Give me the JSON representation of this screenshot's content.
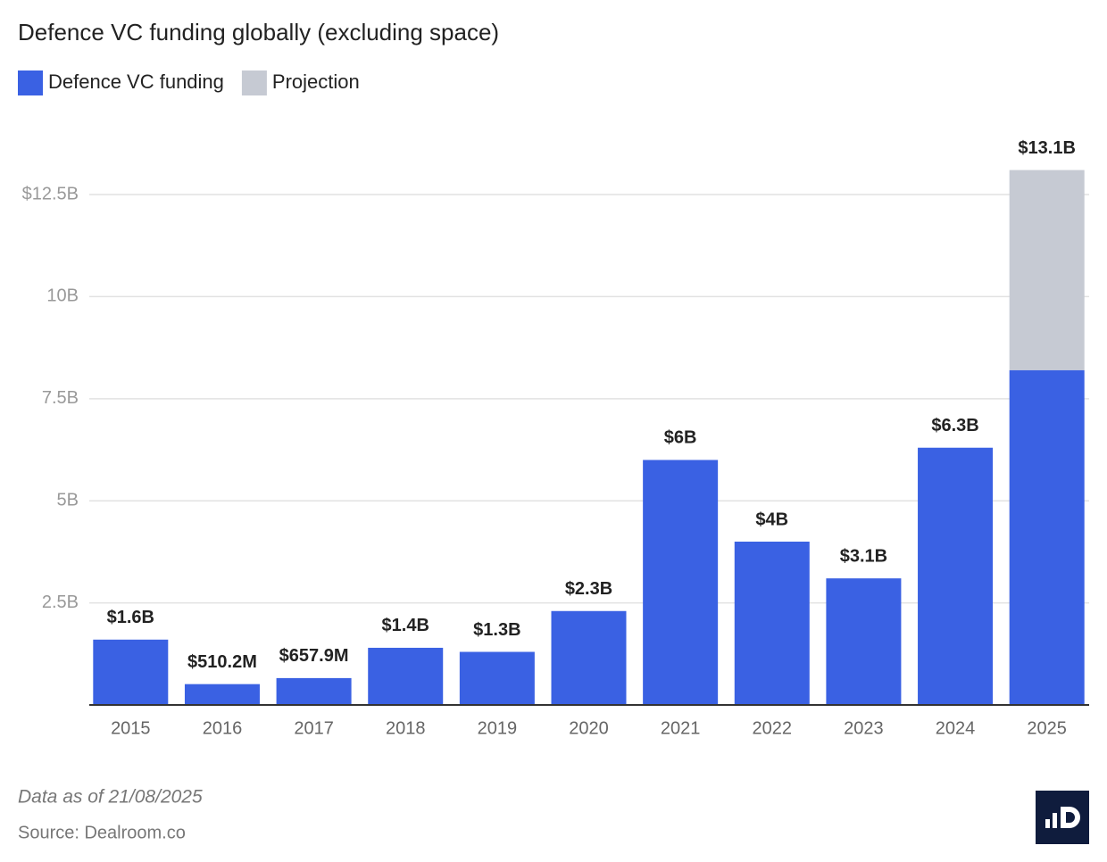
{
  "chart_data": {
    "type": "stacked_bar",
    "title": "Defence VC funding globally (excluding space)",
    "categories": [
      "2015",
      "2016",
      "2017",
      "2018",
      "2019",
      "2020",
      "2021",
      "2022",
      "2023",
      "2024",
      "2025"
    ],
    "series": [
      {
        "name": "Defence VC funding",
        "color": "#3a61e3",
        "values": [
          1.6,
          0.5102,
          0.6579,
          1.4,
          1.3,
          2.3,
          6,
          4,
          3.1,
          6.3,
          8.2
        ],
        "value_labels": [
          "$1.6B",
          "$510.2M",
          "$657.9M",
          "$1.4B",
          "$1.3B",
          "$2.3B",
          "$6B",
          "$4B",
          "$3.1B",
          "$6.3B",
          null
        ]
      },
      {
        "name": "Projection",
        "color": "#c6cad3",
        "values": [
          null,
          null,
          null,
          null,
          null,
          null,
          null,
          null,
          null,
          null,
          4.9
        ]
      }
    ],
    "annotations": [
      {
        "x": "2025",
        "text": "$13.1B",
        "value": 13.1
      }
    ],
    "ylim": [
      0,
      14
    ],
    "yticks": [
      {
        "value": 2.5,
        "label": "2.5B"
      },
      {
        "value": 5,
        "label": "5B"
      },
      {
        "value": 7.5,
        "label": "7.5B"
      },
      {
        "value": 10,
        "label": "10B"
      },
      {
        "value": 12.5,
        "label": "$12.5B"
      }
    ],
    "grid": true,
    "legend": "top-left",
    "footnote": "Data as of 21/08/2025",
    "source": "Source: Dealroom.co"
  }
}
